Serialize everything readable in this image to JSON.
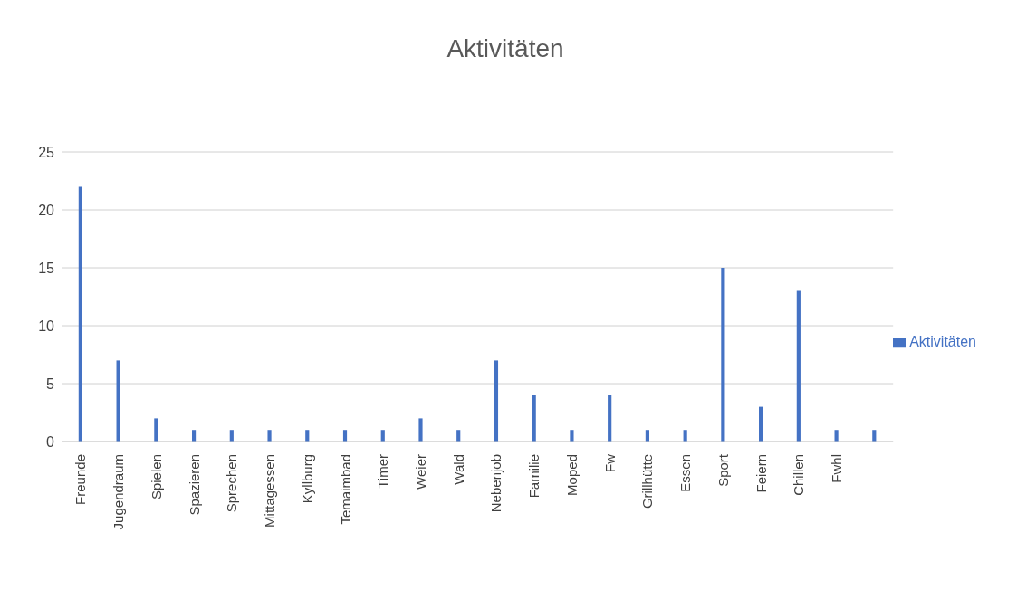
{
  "chart_data": {
    "type": "bar",
    "title": "Aktivitäten",
    "categories": [
      "Freunde",
      "Jugendraum",
      "Spielen",
      "Spazieren",
      "Sprechen",
      "Mittagessen",
      "Kyllburg",
      "Temaimbad",
      "Timer",
      "Weier",
      "Wald",
      "Nebenjob",
      "Familie",
      "Moped",
      "Fw",
      "Grillhütte",
      "Essen",
      "Sport",
      "Feiern",
      "Chillen",
      "Fwhl",
      null
    ],
    "series": [
      {
        "name": "Aktivitäten",
        "color": "#4472c4",
        "values": [
          22,
          7,
          2,
          1,
          1,
          1,
          1,
          1,
          1,
          2,
          1,
          7,
          4,
          1,
          4,
          1,
          1,
          15,
          3,
          13,
          1,
          1
        ]
      }
    ],
    "ylim": [
      0,
      25
    ],
    "yticks": [
      0,
      5,
      10,
      15,
      20,
      25
    ],
    "grid": "y",
    "legend": "right"
  }
}
